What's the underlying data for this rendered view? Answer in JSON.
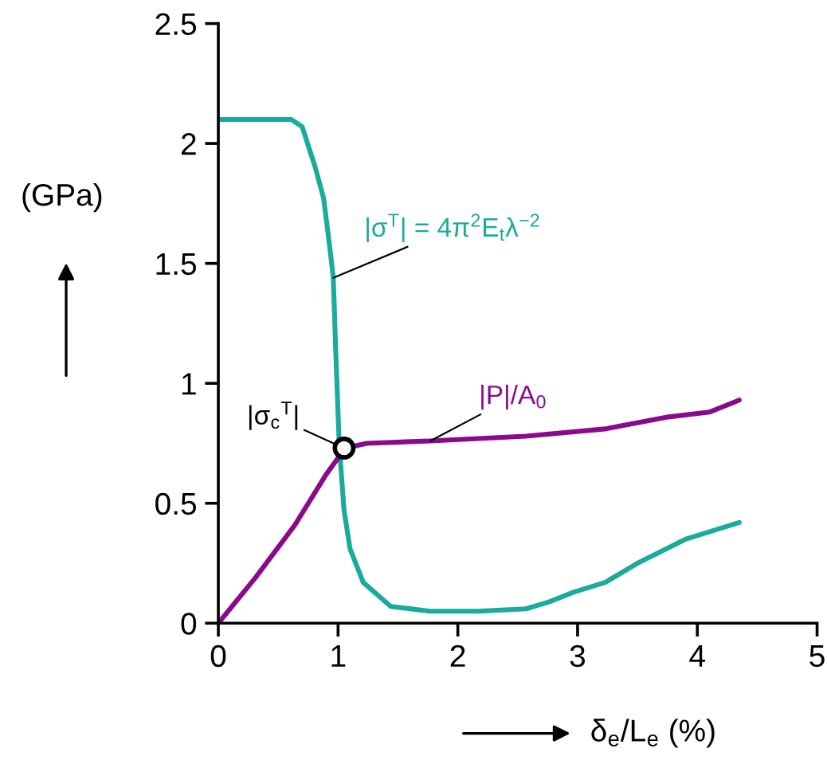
{
  "chart_data": {
    "type": "line",
    "xlabel": "δ$_{e}$/L$_{e}$ (%)",
    "ylabel": "(GPa)",
    "xlim": [
      0,
      5
    ],
    "xticks": [
      0,
      1,
      2,
      3,
      4,
      5
    ],
    "ylim": [
      0,
      2.5
    ],
    "yticks": [
      0,
      0.5,
      1,
      1.5,
      2,
      2.5
    ],
    "grid": false,
    "legend": false,
    "marker": "none",
    "line_style": "solid",
    "series": [
      {
        "name": "|σ$^{T}$| = 4π$^{2}$E$_{t}$λ$^{−2}$",
        "color": "#1aab9b",
        "x": [
          0,
          0.61,
          0.7,
          0.81,
          0.88,
          0.93,
          0.96,
          0.98,
          1.01,
          1.05,
          1.1,
          1.21,
          1.44,
          1.77,
          2.17,
          2.57,
          2.77,
          2.97,
          3.23,
          3.5,
          3.9,
          4.35
        ],
        "values": [
          2.1,
          2.1,
          2.07,
          1.9,
          1.77,
          1.57,
          1.44,
          1.14,
          0.74,
          0.47,
          0.31,
          0.17,
          0.07,
          0.05,
          0.05,
          0.06,
          0.09,
          0.13,
          0.17,
          0.25,
          0.35,
          0.42
        ]
      },
      {
        "name": "|P|/A$_{0}$",
        "color": "#8b0a8b",
        "x": [
          0,
          0.31,
          0.64,
          0.9,
          1.06,
          1.24,
          1.77,
          2.57,
          3.23,
          3.76,
          4.1,
          4.35
        ],
        "values": [
          0,
          0.19,
          0.41,
          0.62,
          0.73,
          0.75,
          0.76,
          0.78,
          0.81,
          0.86,
          0.88,
          0.93
        ]
      },
      {
        "type": "scatter",
        "marker": "circle",
        "color": "#000000",
        "x": [
          1.05
        ],
        "values": [
          0.73
        ]
      }
    ],
    "annotations": [
      {
        "text": "|σ$_{c}$$^{T}$|",
        "x": 1.05,
        "y": 0.73
      }
    ]
  }
}
